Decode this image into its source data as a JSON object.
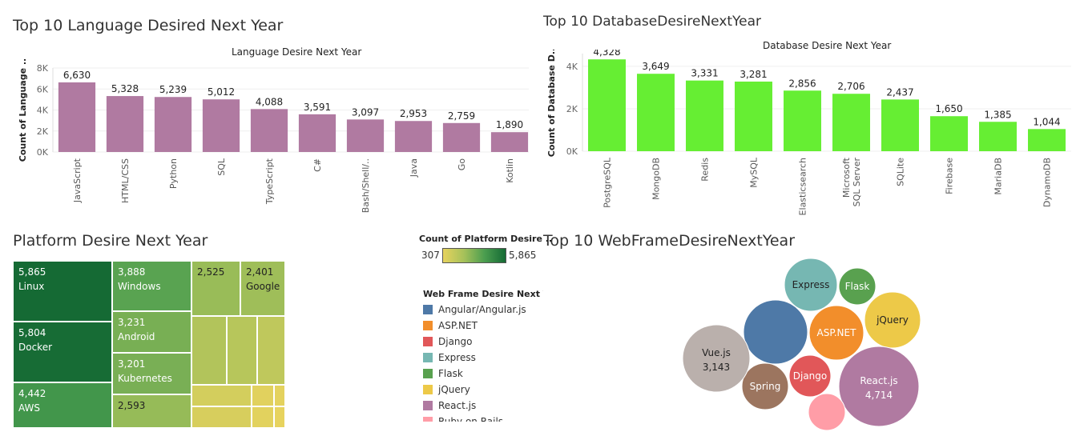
{
  "titles": {
    "language": "Top 10 Language Desired Next Year",
    "database": "Top 10 DatabaseDesireNextYear",
    "platform": "Platform Desire Next Year",
    "webframe": "Top 10 WebFrameDesireNextYear"
  },
  "chart_data": [
    {
      "type": "bar",
      "id": "language",
      "title": "Language Desire Next Year",
      "ylabel": "Count of Language ..",
      "categories": [
        "JavaScript",
        "HTML/CSS",
        "Python",
        "SQL",
        "TypeScript",
        "C#",
        "Bash/Shell/..",
        "Java",
        "Go",
        "Kotlin"
      ],
      "values": [
        6630,
        5328,
        5239,
        5012,
        4088,
        3591,
        3097,
        2953,
        2759,
        1890
      ],
      "labels": [
        "6,630",
        "5,328",
        "5,239",
        "5,012",
        "4,088",
        "3,591",
        "3,097",
        "2,953",
        "2,759",
        "1,890"
      ],
      "yticks": [
        0,
        2000,
        4000,
        6000,
        8000
      ],
      "ytick_labels": [
        "0K",
        "2K",
        "4K",
        "6K",
        "8K"
      ],
      "ylim": [
        0,
        8000
      ],
      "color": "#b07aa1"
    },
    {
      "type": "bar",
      "id": "database",
      "title": "Database Desire Next Year",
      "ylabel": "Count of Database D..",
      "categories": [
        "PostgreSQL",
        "MongoDB",
        "Redis",
        "MySQL",
        "Elasticsearch",
        "Microsoft SQL Server",
        "SQLite",
        "Firebase",
        "MariaDB",
        "DynamoDB"
      ],
      "category_lines": [
        [
          "PostgreSQL"
        ],
        [
          "MongoDB"
        ],
        [
          "Redis"
        ],
        [
          "MySQL"
        ],
        [
          "Elasticsearch"
        ],
        [
          "Microsoft",
          "SQL Server"
        ],
        [
          "SQLite"
        ],
        [
          "Firebase"
        ],
        [
          "MariaDB"
        ],
        [
          "DynamoDB"
        ]
      ],
      "values": [
        4328,
        3649,
        3331,
        3281,
        2856,
        2706,
        2437,
        1650,
        1385,
        1044
      ],
      "labels": [
        "4,328",
        "3,649",
        "3,331",
        "3,281",
        "2,856",
        "2,706",
        "2,437",
        "1,650",
        "1,385",
        "1,044"
      ],
      "yticks": [
        0,
        2000,
        4000
      ],
      "ytick_labels": [
        "0K",
        "2K",
        "4K"
      ],
      "ylim": [
        0,
        4600
      ],
      "color": "#66ee33"
    },
    {
      "type": "treemap",
      "id": "platform",
      "color_legend": {
        "title": "Count of Platform Desire ..",
        "min": 307,
        "max": 5865,
        "min_label": "307",
        "max_label": "5,865"
      },
      "items": [
        {
          "name": "Linux",
          "value": 5865,
          "label": "5,865"
        },
        {
          "name": "Docker",
          "value": 5804,
          "label": "5,804"
        },
        {
          "name": "AWS",
          "value": 4442,
          "label": "4,442"
        },
        {
          "name": "Windows",
          "value": 3888,
          "label": "3,888"
        },
        {
          "name": "Android",
          "value": 3231,
          "label": "3,231"
        },
        {
          "name": "Kubernetes",
          "value": 3201,
          "label": "3,201"
        },
        {
          "name": "",
          "value": 2593,
          "label": "2,593"
        },
        {
          "name": "",
          "value": 2525,
          "label": "2,525"
        },
        {
          "name": "Google",
          "value": 2401,
          "label": "2,401"
        }
      ]
    },
    {
      "type": "bubble",
      "id": "webframe",
      "legend_title": "Web Frame Desire Next Y..",
      "series": [
        {
          "name": "Angular/Angular.js",
          "color": "#4e79a7",
          "shown_label": "",
          "value_label": ""
        },
        {
          "name": "ASP.NET",
          "color": "#f28e2b",
          "shown_label": "ASP.NET",
          "value_label": ""
        },
        {
          "name": "Django",
          "color": "#e15759",
          "shown_label": "Django",
          "value_label": ""
        },
        {
          "name": "Express",
          "color": "#76b7b2",
          "shown_label": "Express",
          "value_label": ""
        },
        {
          "name": "Flask",
          "color": "#59a14f",
          "shown_label": "Flask",
          "value_label": ""
        },
        {
          "name": "jQuery",
          "color": "#edc948",
          "shown_label": "jQuery",
          "value_label": ""
        },
        {
          "name": "React.js",
          "color": "#b07aa1",
          "shown_label": "React.js",
          "value_label": "4,714"
        },
        {
          "name": "Ruby on Rails",
          "color": "#ff9da7",
          "shown_label": "",
          "value_label": ""
        },
        {
          "name": "Spring",
          "color": "#9c755f",
          "shown_label": "Spring",
          "value_label": ""
        },
        {
          "name": "Vue.js",
          "color": "#bab0ac",
          "shown_label": "Vue.js",
          "value_label": "3,143"
        }
      ]
    }
  ]
}
